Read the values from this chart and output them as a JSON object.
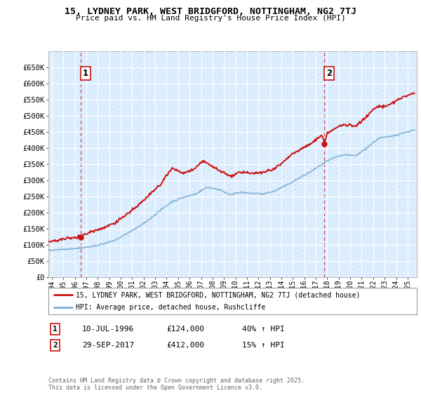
{
  "title": "15, LYDNEY PARK, WEST BRIDGFORD, NOTTINGHAM, NG2 7TJ",
  "subtitle": "Price paid vs. HM Land Registry's House Price Index (HPI)",
  "ylim": [
    0,
    700000
  ],
  "yticks": [
    0,
    50000,
    100000,
    150000,
    200000,
    250000,
    300000,
    350000,
    400000,
    450000,
    500000,
    550000,
    600000,
    650000
  ],
  "ytick_labels": [
    "£0",
    "£50K",
    "£100K",
    "£150K",
    "£200K",
    "£250K",
    "£300K",
    "£350K",
    "£400K",
    "£450K",
    "£500K",
    "£550K",
    "£600K",
    "£650K"
  ],
  "xlim_start": 1993.7,
  "xlim_end": 2025.8,
  "hpi_color": "#7bafd4",
  "price_color": "#cc1111",
  "vline1_x": 1996.53,
  "vline2_x": 2017.75,
  "sale1_x": 1996.53,
  "sale1_y": 124000,
  "sale2_x": 2017.75,
  "sale2_y": 412000,
  "annotation1_label": "1",
  "annotation2_label": "2",
  "legend_line1": "15, LYDNEY PARK, WEST BRIDGFORD, NOTTINGHAM, NG2 7TJ (detached house)",
  "legend_line2": "HPI: Average price, detached house, Rushcliffe",
  "table_row1": [
    "1",
    "10-JUL-1996",
    "£124,000",
    "40% ↑ HPI"
  ],
  "table_row2": [
    "2",
    "29-SEP-2017",
    "£412,000",
    "15% ↑ HPI"
  ],
  "footer": "Contains HM Land Registry data © Crown copyright and database right 2025.\nThis data is licensed under the Open Government Licence v3.0.",
  "plot_bg_color": "#ddeeff",
  "hatch_color": "#c8dded"
}
